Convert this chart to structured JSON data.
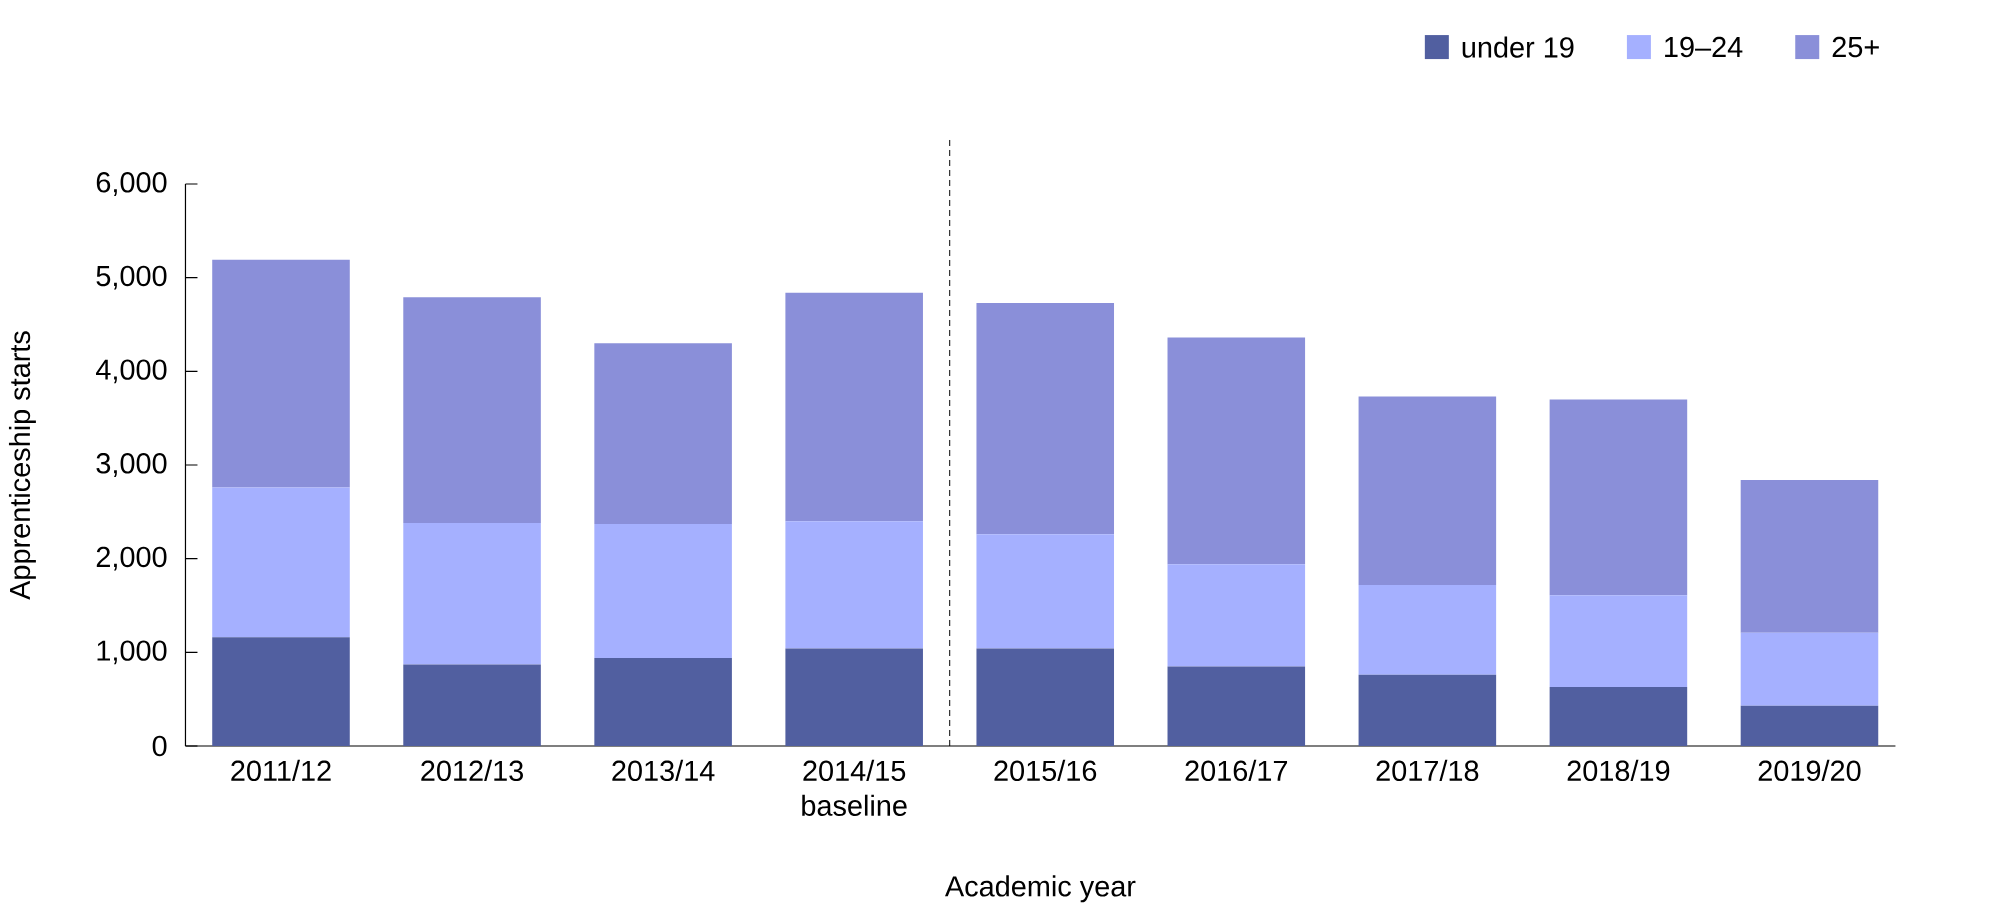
{
  "chart_data": {
    "type": "bar",
    "stacked": true,
    "xlabel": "Academic year",
    "ylabel": "Apprenticeship starts",
    "categories": [
      "2011/12",
      "2012/13",
      "2013/14",
      "2014/15 baseline",
      "2015/16",
      "2016/17",
      "2017/18",
      "2018/19",
      "2019/20"
    ],
    "series": [
      {
        "name": "under 19",
        "color": "#515fa0",
        "values": [
          1160,
          870,
          940,
          1040,
          1040,
          850,
          760,
          630,
          430
        ]
      },
      {
        "name": "19–24",
        "color": "#a5b0ff",
        "values": [
          1600,
          1510,
          1430,
          1360,
          1220,
          1090,
          960,
          980,
          780
        ]
      },
      {
        "name": "25+",
        "color": "#8a8fd9",
        "values": [
          2430,
          2410,
          1930,
          2440,
          2470,
          2420,
          2010,
          2090,
          1630
        ]
      }
    ],
    "ylim": [
      0,
      6000
    ],
    "yticks": [
      0,
      {
        "value": 1000,
        "label": "1,000"
      },
      {
        "value": 2000,
        "label": "2,000"
      },
      {
        "value": 3000,
        "label": "3,000"
      },
      {
        "value": 4000,
        "label": "4,000"
      },
      {
        "value": 5000,
        "label": "5,000"
      },
      {
        "value": 6000,
        "label": "6,000"
      }
    ],
    "legend": "top right",
    "grid": false
  }
}
